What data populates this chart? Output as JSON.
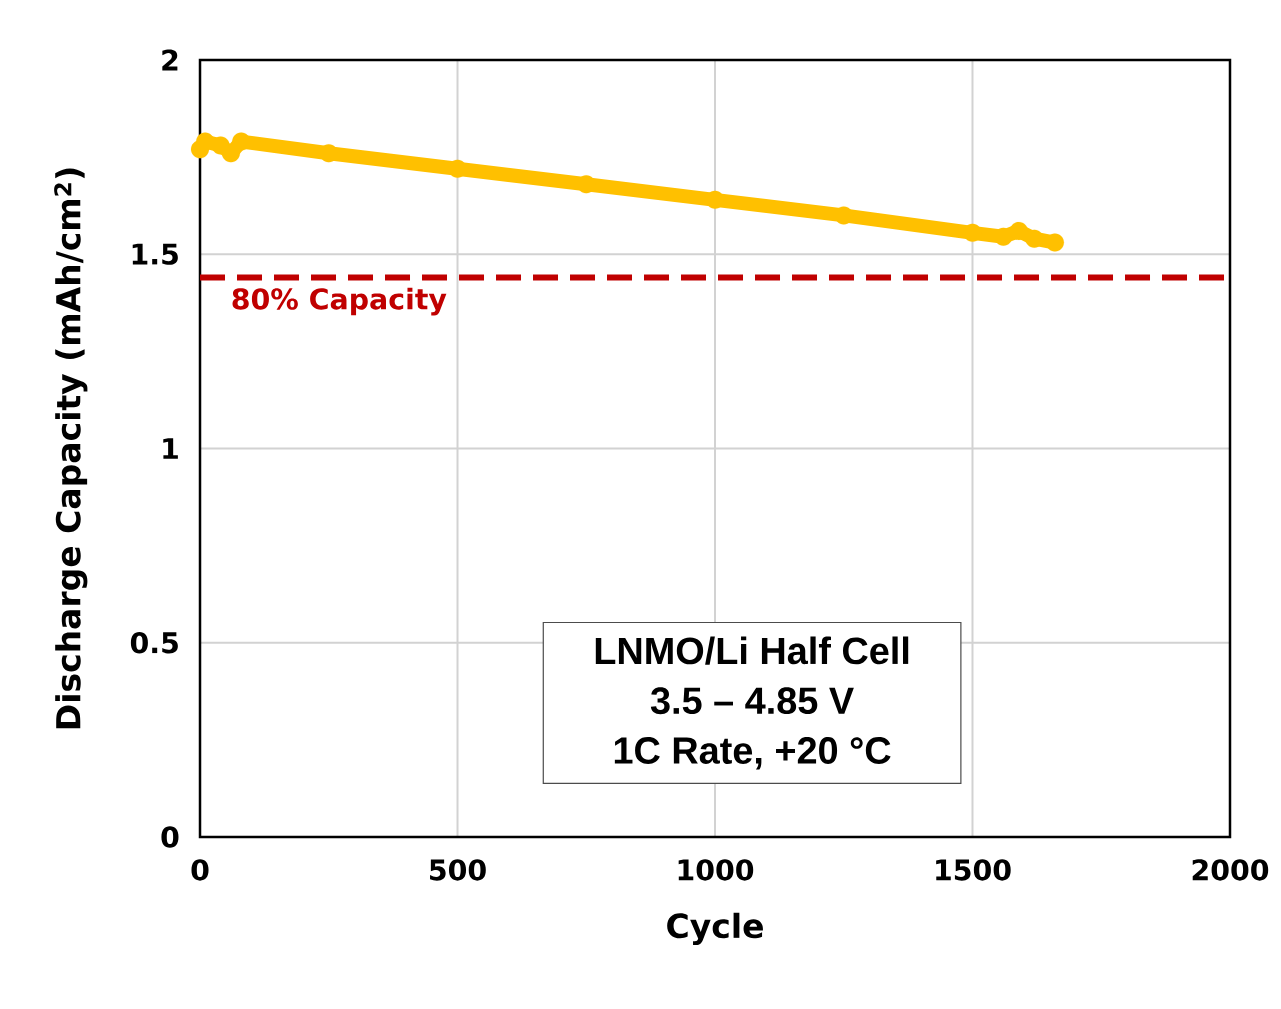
{
  "chart_data": {
    "type": "line",
    "xlabel": "Cycle",
    "ylabel": "Discharge Capacity (mAh/cm$^{2}$)",
    "x": [
      0,
      10,
      40,
      60,
      80,
      250,
      500,
      750,
      1000,
      1250,
      1500,
      1560,
      1590,
      1620,
      1660
    ],
    "series": [
      {
        "color": "#ffc000",
        "values": [
          1.77,
          1.79,
          1.78,
          1.76,
          1.79,
          1.76,
          1.72,
          1.68,
          1.64,
          1.6,
          1.555,
          1.545,
          1.56,
          1.54,
          1.53
        ]
      }
    ],
    "xlim": [
      0,
      2000
    ],
    "xticks": [
      0,
      500,
      1000,
      1500,
      2000
    ],
    "ylim": [
      0,
      2
    ],
    "yticks": [
      0,
      0.5,
      1,
      1.5,
      2
    ],
    "grid": true,
    "marker": "circle",
    "line_style": "solid",
    "ref_lines": [
      {
        "axis": "y",
        "value": 1.44,
        "label": "80% Capacity",
        "color": "#c00000",
        "line_style": "dashed"
      }
    ],
    "annotations": [
      "LNMO/Li Half Cell",
      "3.5 – 4.85 V",
      "1C Rate, +20 °C"
    ]
  }
}
